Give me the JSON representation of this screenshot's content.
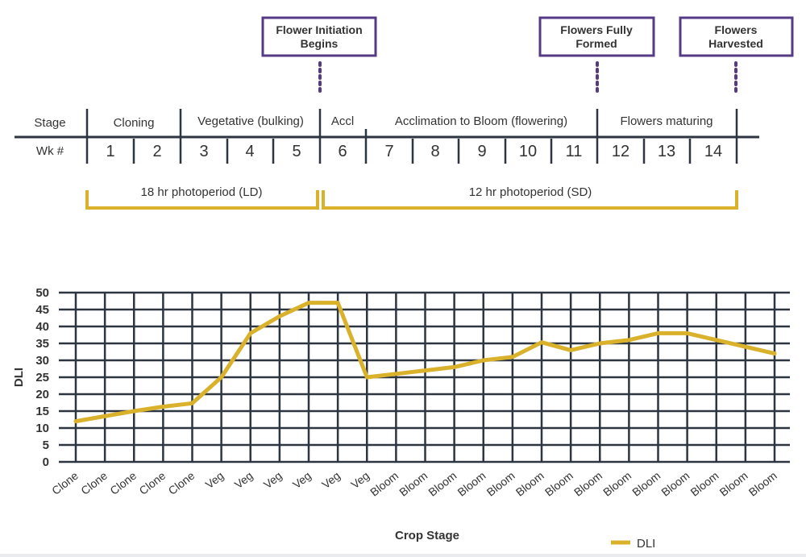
{
  "colors": {
    "accent_purple": "#553a86",
    "gold": "#d9b12a",
    "grid_dark": "#2d3640",
    "text": "#2c2c2c"
  },
  "milestones": [
    {
      "line1": "Flower Initiation",
      "line2": "Begins"
    },
    {
      "line1": "Flowers Fully",
      "line2": "Formed"
    },
    {
      "line1": "Flowers",
      "line2": "Harvested"
    }
  ],
  "timeline": {
    "stage_label": "Stage",
    "week_label": "Wk #",
    "stages": [
      "Cloning",
      "Vegetative (bulking)",
      "Accl",
      "Acclimation to Bloom (flowering)",
      "Flowers maturing"
    ],
    "weeks": [
      "1",
      "2",
      "3",
      "4",
      "5",
      "6",
      "7",
      "8",
      "9",
      "10",
      "11",
      "12",
      "13",
      "14"
    ]
  },
  "photoperiods": [
    "18 hr photoperiod (LD)",
    "12 hr photoperiod (SD)"
  ],
  "chart_data": {
    "type": "line",
    "title": "",
    "xlabel": "Crop Stage",
    "ylabel": "DLI",
    "ylim": [
      0,
      50
    ],
    "yticks": [
      0,
      5,
      10,
      15,
      20,
      25,
      30,
      35,
      40,
      45,
      50
    ],
    "grid": true,
    "legend_position": "bottom-right",
    "categories": [
      "Clone",
      "Clone",
      "Clone",
      "Clone",
      "Clone",
      "Veg",
      "Veg",
      "Veg",
      "Veg",
      "Veg",
      "Veg",
      "Bloom",
      "Bloom",
      "Bloom",
      "Bloom",
      "Bloom",
      "Bloom",
      "Bloom",
      "Bloom",
      "Bloom",
      "Bloom",
      "Bloom",
      "Bloom",
      "Bloom",
      "Bloom"
    ],
    "series": [
      {
        "name": "DLI",
        "values": [
          12,
          13.5,
          15,
          16.3,
          17.3,
          25,
          38,
          43,
          47,
          47,
          25,
          26,
          27,
          28,
          30,
          31,
          35.3,
          33,
          35,
          36,
          38,
          38,
          36,
          34,
          32
        ],
        "color": "#d9b12a"
      }
    ]
  }
}
